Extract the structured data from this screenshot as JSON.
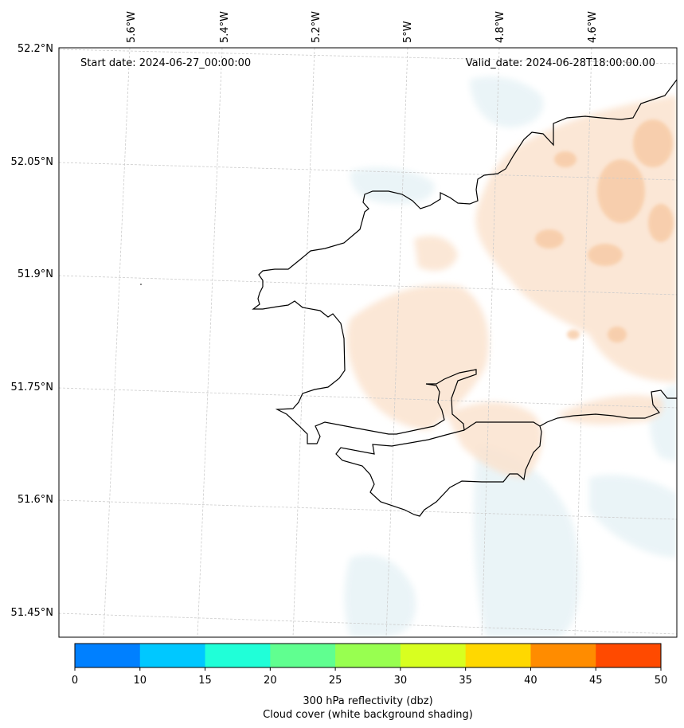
{
  "map": {
    "start_date": "Start date: 2024-06-27_00:00:00",
    "valid_date": "Valid_date: 2024-06-28T18:00:00.00",
    "lon_labels": [
      "5.6°W",
      "5.4°W",
      "5.2°W",
      "5°W",
      "4.8°W",
      "4.6°W"
    ],
    "lat_labels": [
      "52.2°N",
      "52.05°N",
      "51.9°N",
      "51.75°N",
      "51.6°N",
      "51.45°N"
    ],
    "coastline_color": "#000000",
    "gridline_color": "#cccccc",
    "shading_colors": [
      "#fbe3cf",
      "#f7c9a3",
      "#e8f4f8"
    ]
  },
  "colorbar": {
    "ticks": [
      "0",
      "10",
      "15",
      "20",
      "25",
      "30",
      "35",
      "40",
      "45",
      "50"
    ],
    "colors": [
      "#0080ff",
      "#00c8ff",
      "#20ffd8",
      "#60ff90",
      "#98ff50",
      "#d8ff20",
      "#ffd800",
      "#ff8c00",
      "#ff4a00"
    ],
    "label_line1": "300 hPa reflectivity (dbz)",
    "label_line2": "Cloud cover (white background shading)"
  }
}
